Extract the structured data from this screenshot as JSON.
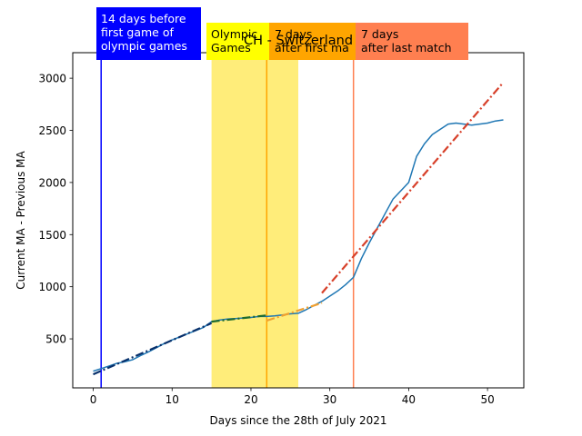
{
  "chart_data": {
    "type": "line",
    "title": "CH - Switzerland",
    "xlabel": "Days since the 28th of July 2021",
    "ylabel": "Current MA - Previous MA",
    "xlim": [
      -2.6,
      54.6
    ],
    "ylim": [
      30,
      3245
    ],
    "xticks": [
      0,
      10,
      20,
      30,
      40,
      50
    ],
    "yticks": [
      500,
      1000,
      1500,
      2000,
      2500,
      3000
    ],
    "grid": false,
    "legend": "none",
    "shaded_region": {
      "x0": 15,
      "x1": 26,
      "color": "#FFED7A"
    },
    "vlines": [
      {
        "x": 1,
        "color": "#0000FF"
      },
      {
        "x": 22,
        "color": "#FFA500"
      },
      {
        "x": 33,
        "color": "#FF7F50"
      }
    ],
    "annotations": [
      {
        "text": [
          "14 days before",
          "first game of",
          "olympic games"
        ],
        "bg": "#0000FF",
        "fg": "#ffffff"
      },
      {
        "text": [
          "Olympic",
          "Games"
        ],
        "bg": "#FFFF00",
        "fg": "#000000"
      },
      {
        "text": [
          "7 days",
          "after first ma"
        ],
        "bg": "#FFA500",
        "fg": "#000000"
      },
      {
        "text": [
          "7 days",
          "after last match"
        ],
        "bg": "#FF7F50",
        "fg": "#000000"
      }
    ],
    "series": [
      {
        "style": "solid",
        "color": "#1F77B4",
        "x": [
          0,
          1,
          2,
          3,
          4,
          5,
          6,
          7,
          8,
          9,
          10,
          11,
          12,
          13,
          14,
          15,
          16,
          17,
          18,
          19,
          20,
          21,
          22,
          23,
          24,
          25,
          26,
          27,
          28,
          29,
          30,
          31,
          32,
          33,
          34,
          35,
          36,
          37,
          38,
          39,
          40,
          41,
          42,
          43,
          44,
          45,
          46,
          47,
          48,
          49,
          50,
          51,
          52
        ],
        "values": [
          190,
          215,
          240,
          265,
          280,
          300,
          340,
          375,
          415,
          455,
          490,
          520,
          550,
          580,
          610,
          665,
          680,
          690,
          695,
          700,
          705,
          715,
          715,
          720,
          730,
          740,
          745,
          780,
          820,
          860,
          910,
          960,
          1020,
          1090,
          1270,
          1420,
          1560,
          1700,
          1840,
          1920,
          2000,
          2250,
          2370,
          2460,
          2510,
          2560,
          2570,
          2560,
          2550,
          2560,
          2570,
          2590,
          2600
        ]
      },
      {
        "style": "dashdot",
        "color": "#08306B",
        "x": [
          0,
          15
        ],
        "values": [
          160,
          650
        ]
      },
      {
        "style": "dashdot",
        "color": "#1E6B2E",
        "x": [
          15,
          22
        ],
        "values": [
          665,
          725
        ]
      },
      {
        "style": "dashdot",
        "color": "#F0A030",
        "x": [
          22,
          29
        ],
        "values": [
          675,
          845
        ]
      },
      {
        "style": "dashdot",
        "color": "#D7402A",
        "x": [
          29,
          52
        ],
        "values": [
          940,
          2960
        ]
      }
    ]
  }
}
